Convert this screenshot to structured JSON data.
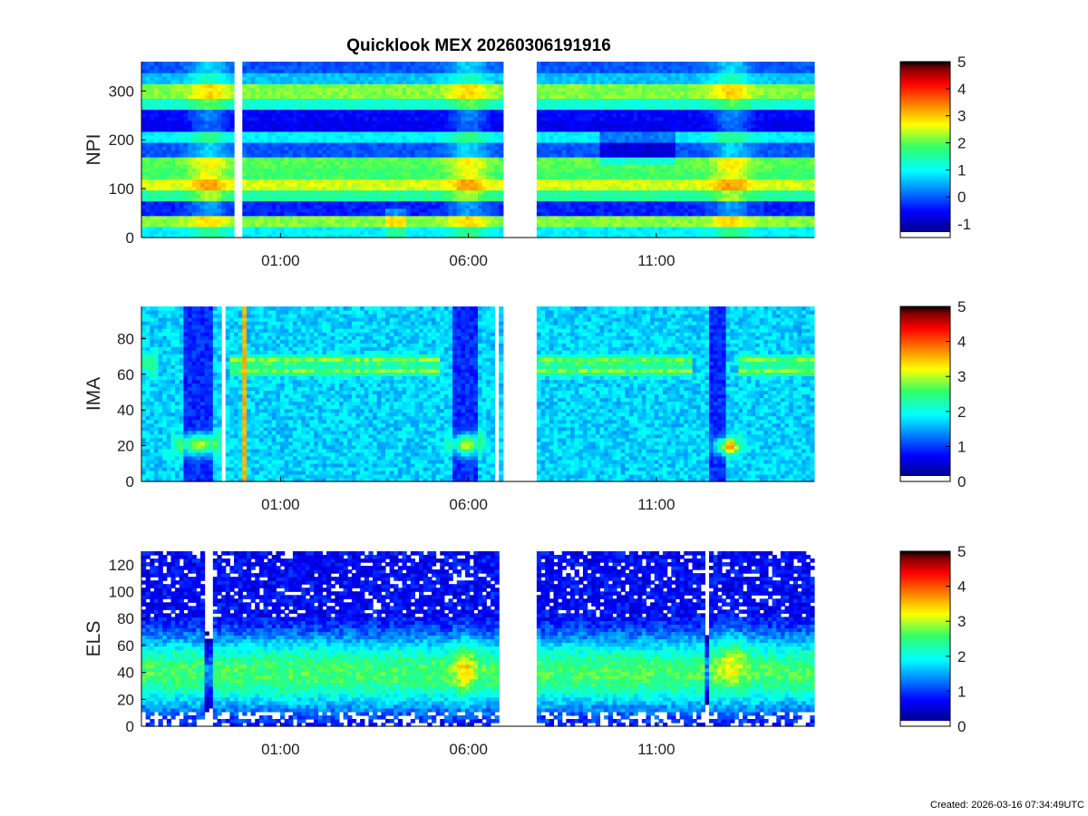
{
  "title": "Quicklook MEX 20260306191916",
  "created": "Created: 2026-03-16 07:34:49UTC",
  "chart_data": [
    {
      "type": "heatmap",
      "ylabel": "NPI",
      "ylim": [
        0,
        360
      ],
      "yticks": [
        0,
        100,
        200,
        300
      ],
      "xticks": [
        "01:00",
        "06:00",
        "11:00"
      ],
      "xlim_hours": [
        -2.7,
        15.2
      ],
      "data_gaps_hours": [
        [
          -0.2,
          -0.05
        ],
        [
          6.9,
          7.8
        ]
      ],
      "colorbar": {
        "min": -1.5,
        "max": 5,
        "ticks": [
          -1,
          0,
          1,
          2,
          3,
          4,
          5
        ]
      }
    },
    {
      "type": "heatmap",
      "ylabel": "IMA",
      "ylim": [
        0,
        98
      ],
      "yticks": [
        0,
        20,
        40,
        60,
        80
      ],
      "xticks": [
        "01:00",
        "06:00",
        "11:00"
      ],
      "xlim_hours": [
        -2.7,
        15.2
      ],
      "data_gaps_hours": [
        [
          -0.6,
          -0.45
        ],
        [
          6.75,
          6.85
        ],
        [
          6.95,
          7.8
        ]
      ],
      "colorbar": {
        "min": 0,
        "max": 5,
        "ticks": [
          0,
          1,
          2,
          3,
          4,
          5
        ]
      }
    },
    {
      "type": "heatmap",
      "ylabel": "ELS",
      "ylim": [
        0,
        130
      ],
      "yticks": [
        0,
        20,
        40,
        60,
        80,
        100,
        120
      ],
      "xticks": [
        "01:00",
        "06:00",
        "11:00"
      ],
      "xlim_hours": [
        -2.7,
        15.2
      ],
      "data_gaps_hours": [
        [
          6.8,
          7.8
        ]
      ],
      "colorbar": {
        "min": 0,
        "max": 5,
        "ticks": [
          0,
          1,
          2,
          3,
          4,
          5
        ]
      }
    }
  ]
}
